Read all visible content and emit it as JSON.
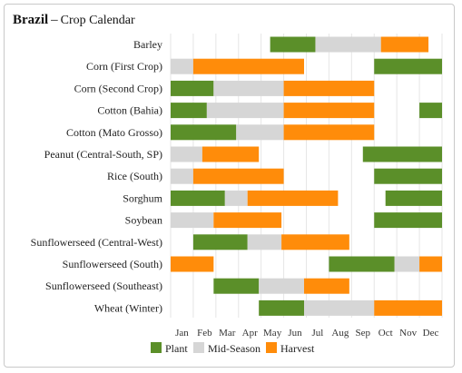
{
  "header": {
    "country": "Brazil",
    "separator": "–",
    "subtitle": "Crop Calendar"
  },
  "colors": {
    "plant": "#5b8f29",
    "mid": "#d6d6d6",
    "harvest": "#ff8c0a",
    "grid": "#e6e6e6"
  },
  "chart_data": {
    "type": "timeline",
    "title": "Brazil – Crop Calendar",
    "months": [
      "Jan",
      "Feb",
      "Mar",
      "Apr",
      "May",
      "Jun",
      "Jul",
      "Aug",
      "Sep",
      "Oct",
      "Nov",
      "Dec"
    ],
    "legend": [
      {
        "key": "plant",
        "label": "Plant"
      },
      {
        "key": "mid",
        "label": "Mid-Season"
      },
      {
        "key": "harvest",
        "label": "Harvest"
      }
    ],
    "value_unit": "months from start of January (0 = Jan 1, 12 = Dec 31)",
    "crops": [
      {
        "name": "Barley",
        "segments": [
          [
            "plant",
            4.4,
            6.4
          ],
          [
            "mid",
            6.4,
            9.3
          ],
          [
            "harvest",
            9.3,
            11.4
          ]
        ]
      },
      {
        "name": "Corn (First Crop)",
        "segments": [
          [
            "mid",
            0,
            1.0
          ],
          [
            "harvest",
            1.0,
            5.9
          ],
          [
            "plant",
            9.0,
            12.0
          ]
        ]
      },
      {
        "name": "Corn (Second Crop)",
        "segments": [
          [
            "plant",
            0,
            1.9
          ],
          [
            "mid",
            1.9,
            5.0
          ],
          [
            "harvest",
            5.0,
            9.0
          ]
        ]
      },
      {
        "name": "Cotton (Bahia)",
        "segments": [
          [
            "plant",
            0,
            1.6
          ],
          [
            "mid",
            1.6,
            5.0
          ],
          [
            "harvest",
            5.0,
            9.0
          ],
          [
            "plant",
            11.0,
            12.0
          ]
        ]
      },
      {
        "name": "Cotton (Mato Grosso)",
        "segments": [
          [
            "plant",
            0,
            2.9
          ],
          [
            "mid",
            2.9,
            5.0
          ],
          [
            "harvest",
            5.0,
            9.0
          ]
        ]
      },
      {
        "name": "Peanut (Central-South, SP)",
        "segments": [
          [
            "mid",
            0,
            1.4
          ],
          [
            "harvest",
            1.4,
            3.9
          ],
          [
            "plant",
            8.5,
            12.0
          ]
        ]
      },
      {
        "name": "Rice (South)",
        "segments": [
          [
            "mid",
            0,
            1.0
          ],
          [
            "harvest",
            1.0,
            5.0
          ],
          [
            "plant",
            9.0,
            12.0
          ]
        ]
      },
      {
        "name": "Sorghum",
        "segments": [
          [
            "plant",
            0,
            2.4
          ],
          [
            "mid",
            2.4,
            3.4
          ],
          [
            "harvest",
            3.4,
            7.4
          ],
          [
            "plant",
            9.5,
            12.0
          ]
        ]
      },
      {
        "name": "Soybean",
        "segments": [
          [
            "mid",
            0,
            1.9
          ],
          [
            "harvest",
            1.9,
            4.9
          ],
          [
            "plant",
            9.0,
            12.0
          ]
        ]
      },
      {
        "name": "Sunflowerseed (Central-West)",
        "segments": [
          [
            "plant",
            1.0,
            3.4
          ],
          [
            "mid",
            3.4,
            4.9
          ],
          [
            "harvest",
            4.9,
            7.9
          ]
        ]
      },
      {
        "name": "Sunflowerseed (South)",
        "segments": [
          [
            "harvest",
            0,
            1.9
          ],
          [
            "plant",
            7.0,
            9.9
          ],
          [
            "mid",
            9.9,
            11.0
          ],
          [
            "harvest",
            11.0,
            12.0
          ]
        ]
      },
      {
        "name": "Sunflowerseed (Southeast)",
        "segments": [
          [
            "plant",
            1.9,
            3.9
          ],
          [
            "mid",
            3.9,
            5.9
          ],
          [
            "harvest",
            5.9,
            7.9
          ]
        ]
      },
      {
        "name": "Wheat (Winter)",
        "segments": [
          [
            "plant",
            3.9,
            5.9
          ],
          [
            "mid",
            5.9,
            9.0
          ],
          [
            "harvest",
            9.0,
            12.0
          ]
        ]
      }
    ]
  }
}
